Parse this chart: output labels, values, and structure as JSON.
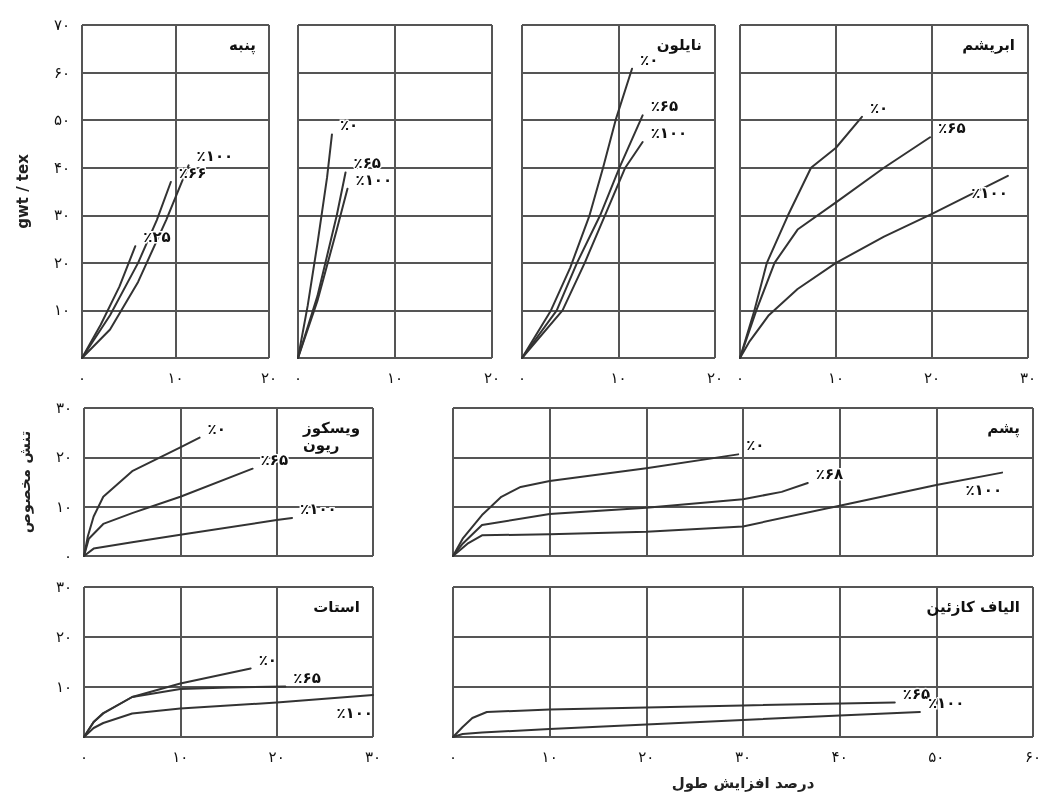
{
  "chart_data": [
    {
      "type": "line",
      "title": "پنبه",
      "ylabel": "gwt / tex",
      "xlim": [
        0,
        20
      ],
      "ylim": [
        0,
        70
      ],
      "grid": true,
      "xticks": [
        {
          "value": 0,
          "label": "۰"
        },
        {
          "value": 10,
          "label": "۱۰"
        },
        {
          "value": 20,
          "label": "۲۰"
        }
      ],
      "yticks": [
        {
          "value": 0,
          "label": null
        },
        {
          "value": 10,
          "label": "۱۰"
        },
        {
          "value": 20,
          "label": "۲۰"
        },
        {
          "value": 30,
          "label": "۳۰"
        },
        {
          "value": 40,
          "label": "۴۰"
        },
        {
          "value": 50,
          "label": "۵۰"
        },
        {
          "value": 60,
          "label": "۶۰"
        },
        {
          "value": 70,
          "label": "۷۰"
        }
      ],
      "series": [
        {
          "name": "٪۲۵",
          "color": "#333333",
          "x": [
            0,
            2,
            4,
            5.7
          ],
          "values": [
            0,
            7,
            15,
            23.5
          ]
        },
        {
          "name": "٪۶۶",
          "color": "#333333",
          "x": [
            0,
            3,
            6,
            8,
            9.5
          ],
          "values": [
            0,
            9,
            20,
            29,
            37
          ]
        },
        {
          "name": "٪۱۰۰",
          "color": "#333333",
          "x": [
            0,
            3,
            6,
            9,
            11.4
          ],
          "values": [
            0,
            6,
            16,
            29,
            40.5
          ]
        }
      ]
    },
    {
      "type": "line",
      "xlim": [
        0,
        20
      ],
      "ylim": [
        0,
        70
      ],
      "grid": true,
      "tick_labels": "x",
      "xticks": [
        {
          "value": 0,
          "label": "۰"
        },
        {
          "value": 10,
          "label": "۱۰"
        },
        {
          "value": 20,
          "label": "۲۰"
        }
      ],
      "yticks": [
        0,
        10,
        20,
        30,
        40,
        50,
        60,
        70
      ],
      "series": [
        {
          "name": "٪۰",
          "color": "#333333",
          "x": [
            0,
            1,
            2,
            3,
            3.5
          ],
          "values": [
            0,
            11,
            24,
            38,
            47
          ]
        },
        {
          "name": "٪۶۵",
          "color": "#333333",
          "x": [
            0,
            2,
            4,
            4.9
          ],
          "values": [
            0,
            13,
            30,
            39
          ]
        },
        {
          "name": "٪۱۰۰",
          "color": "#333333",
          "x": [
            0,
            2,
            4,
            5.1
          ],
          "values": [
            0,
            12,
            27,
            35.6
          ]
        }
      ]
    },
    {
      "type": "line",
      "title": "نایلون",
      "xlim": [
        0,
        20
      ],
      "ylim": [
        0,
        70
      ],
      "grid": true,
      "tick_labels": "x",
      "xticks": [
        {
          "value": 0,
          "label": "۰"
        },
        {
          "value": 10,
          "label": "۱۰"
        },
        {
          "value": 20,
          "label": "۲۰"
        }
      ],
      "yticks": [
        0,
        10,
        20,
        30,
        40,
        50,
        60,
        70
      ],
      "series": [
        {
          "name": "٪۰",
          "color": "#333333",
          "x": [
            0,
            3,
            5,
            7,
            8.4,
            9.7,
            11.4
          ],
          "values": [
            0,
            10,
            19,
            30,
            40,
            50,
            60.8
          ]
        },
        {
          "name": "٪۶۵",
          "color": "#333333",
          "x": [
            0,
            3.6,
            5.7,
            8.1,
            10.1,
            12.5
          ],
          "values": [
            0,
            10,
            20,
            30,
            40,
            51
          ]
        },
        {
          "name": "٪۱۰۰",
          "color": "#333333",
          "x": [
            0,
            4.2,
            6.5,
            8.6,
            10.7,
            12.5
          ],
          "values": [
            0,
            10,
            20,
            30,
            40,
            45.4
          ]
        }
      ]
    },
    {
      "type": "line",
      "title": "ابریشم",
      "xlim": [
        0,
        30
      ],
      "ylim": [
        0,
        70
      ],
      "grid": true,
      "tick_labels": "x",
      "xticks": [
        {
          "value": 0,
          "label": "۰"
        },
        {
          "value": 10,
          "label": "۱۰"
        },
        {
          "value": 20,
          "label": "۲۰"
        },
        {
          "value": 30,
          "label": "۳۰"
        }
      ],
      "yticks": [
        0,
        10,
        20,
        30,
        40,
        50,
        60,
        70
      ],
      "series": [
        {
          "name": "٪۰",
          "color": "#333333",
          "x": [
            0,
            1.5,
            2.8,
            5,
            7.4,
            10,
            12.7
          ],
          "values": [
            0,
            10,
            20,
            30,
            40,
            44.2,
            50.7
          ]
        },
        {
          "name": "٪۶۵",
          "color": "#333333",
          "x": [
            0,
            1.7,
            3.6,
            6,
            10,
            15,
            19.8
          ],
          "values": [
            0,
            10,
            20,
            27,
            32.7,
            40,
            46.4
          ]
        },
        {
          "name": "٪۱۰۰",
          "color": "#333333",
          "x": [
            0,
            1,
            3,
            6,
            10,
            15,
            20,
            27.9
          ],
          "values": [
            0,
            3.5,
            9,
            14.5,
            20,
            25.5,
            30.3,
            38.3
          ]
        }
      ]
    },
    {
      "type": "line",
      "title": "ویسکوز\nریون",
      "ylabel": "تنش مخصوص",
      "xlim": [
        0,
        30
      ],
      "ylim": [
        0,
        30
      ],
      "grid": true,
      "tick_labels": "y",
      "xticks": [
        0,
        10,
        20,
        30
      ],
      "yticks": [
        {
          "value": 0,
          "label": "۰"
        },
        {
          "value": 10,
          "label": "۱۰"
        },
        {
          "value": 20,
          "label": "۲۰"
        },
        {
          "value": 30,
          "label": "۳۰"
        }
      ],
      "series": [
        {
          "name": "٪۰",
          "color": "#333333",
          "x": [
            0,
            0.4,
            1,
            2,
            5,
            10,
            12
          ],
          "values": [
            0,
            4,
            8,
            12,
            17.2,
            22,
            24
          ]
        },
        {
          "name": "٪۶۵",
          "color": "#333333",
          "x": [
            0,
            0.5,
            2,
            5,
            10,
            17.5
          ],
          "values": [
            0,
            3.5,
            6.5,
            8.7,
            12,
            17.7
          ]
        },
        {
          "name": "٪۱۰۰",
          "color": "#333333",
          "x": [
            0,
            1,
            5,
            10,
            20,
            21.6
          ],
          "values": [
            0,
            1.5,
            2.8,
            4.3,
            7.3,
            7.7
          ]
        }
      ]
    },
    {
      "type": "line",
      "title": "پشم",
      "xlim": [
        0,
        60
      ],
      "ylim": [
        0,
        30
      ],
      "grid": true,
      "tick_labels": false,
      "xticks": [
        0,
        10,
        20,
        30,
        40,
        50,
        60
      ],
      "yticks": [
        0,
        10,
        20,
        30
      ],
      "series": [
        {
          "name": "٪۰",
          "color": "#333333",
          "x": [
            0,
            1,
            3,
            5,
            7,
            10,
            20,
            29.5
          ],
          "values": [
            0,
            3.5,
            8.3,
            12,
            14,
            15.2,
            17.8,
            20.6
          ]
        },
        {
          "name": "٪۶۸",
          "color": "#333333",
          "x": [
            0,
            1,
            3,
            10,
            20,
            30,
            34,
            36.7
          ],
          "values": [
            0,
            2.5,
            6.3,
            8.5,
            9.8,
            11.5,
            13,
            14.8
          ]
        },
        {
          "name": "٪۱۰۰",
          "color": "#333333",
          "x": [
            0,
            1.5,
            3,
            10,
            20,
            30,
            40,
            50,
            56.8
          ],
          "values": [
            0,
            2.5,
            4.2,
            4.4,
            4.9,
            6,
            10.2,
            14.4,
            16.9
          ]
        }
      ]
    },
    {
      "type": "line",
      "title": "استات",
      "xlim": [
        0,
        30
      ],
      "ylim": [
        0,
        30
      ],
      "grid": true,
      "xticks": [
        {
          "value": 0,
          "label": "۰"
        },
        {
          "value": 10,
          "label": "۱۰"
        },
        {
          "value": 20,
          "label": "۲۰"
        },
        {
          "value": 30,
          "label": "۳۰"
        }
      ],
      "yticks": [
        {
          "value": 0,
          "label": null
        },
        {
          "value": 10,
          "label": "۱۰"
        },
        {
          "value": 20,
          "label": "۲۰"
        },
        {
          "value": 30,
          "label": "۳۰"
        }
      ],
      "series": [
        {
          "name": "٪۰",
          "color": "#333333",
          "x": [
            0,
            1,
            2,
            5,
            10,
            17.3
          ],
          "values": [
            0,
            3,
            4.7,
            8,
            10.7,
            13.7
          ]
        },
        {
          "name": "٪۶۵",
          "color": "#333333",
          "x": [
            0,
            1,
            2,
            5,
            10,
            15,
            20.9
          ],
          "values": [
            0,
            3,
            4.8,
            8,
            9.6,
            9.9,
            10.1
          ]
        },
        {
          "name": "٪۱۰۰",
          "color": "#333333",
          "x": [
            0,
            1,
            2,
            5,
            10,
            20,
            30
          ],
          "values": [
            0,
            1.8,
            2.8,
            4.7,
            5.7,
            6.9,
            8.4
          ]
        }
      ]
    },
    {
      "type": "line",
      "title": "الیاف کازئین",
      "xlabel": "درصد افزایش طول",
      "xlim": [
        0,
        60
      ],
      "ylim": [
        0,
        30
      ],
      "grid": true,
      "tick_labels": "x",
      "xticks": [
        {
          "value": 0,
          "label": "۰"
        },
        {
          "value": 10,
          "label": "۱۰"
        },
        {
          "value": 20,
          "label": "۲۰"
        },
        {
          "value": 30,
          "label": "۳۰"
        },
        {
          "value": 40,
          "label": "۴۰"
        },
        {
          "value": 50,
          "label": "۵۰"
        },
        {
          "value": 60,
          "label": "۶۰"
        }
      ],
      "yticks": [
        0,
        10,
        20,
        30
      ],
      "series": [
        {
          "name": "٪۶۵",
          "color": "#333333",
          "x": [
            0,
            1,
            2,
            3.5,
            10,
            20,
            30,
            45.7
          ],
          "values": [
            0,
            2,
            3.8,
            5,
            5.5,
            5.9,
            6.3,
            6.9
          ]
        },
        {
          "name": "٪۱۰۰",
          "color": "#333333",
          "x": [
            0,
            1,
            3,
            10,
            20,
            30,
            40,
            48.3
          ],
          "values": [
            0,
            0.6,
            0.9,
            1.6,
            2.5,
            3.4,
            4.3,
            5
          ]
        }
      ]
    }
  ]
}
